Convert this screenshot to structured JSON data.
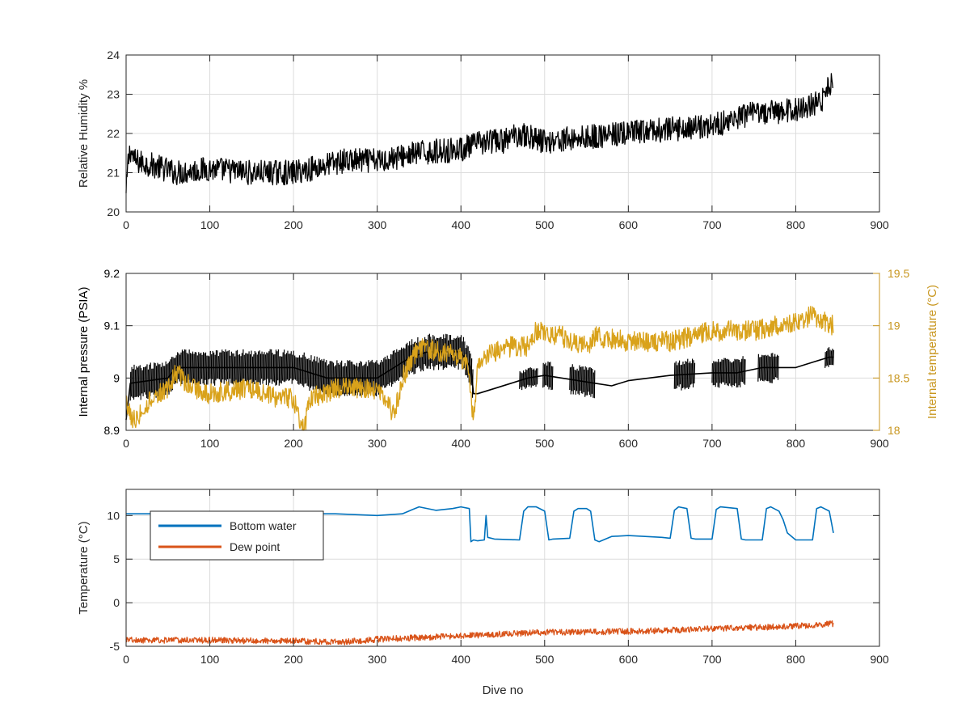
{
  "figure": {
    "xlabel": "Dive no"
  },
  "colors": {
    "axis": "#262626",
    "grid": "#dcdcdc",
    "black_series": "#000000",
    "gold": "#D9A21B",
    "gold_text": "#C8961E",
    "blue": "#0072BD",
    "orange": "#D95319"
  },
  "chart_data": [
    {
      "type": "line",
      "ylabel": "Relative Humidity %",
      "xlim": [
        0,
        900
      ],
      "ylim": [
        20,
        24
      ],
      "xticks": [
        "0",
        "100",
        "200",
        "300",
        "400",
        "500",
        "600",
        "700",
        "800",
        "900"
      ],
      "yticks": [
        "20",
        "21",
        "22",
        "23",
        "24"
      ],
      "grid": true,
      "series": [
        {
          "color": "black",
          "noise": 0.32,
          "x": [
            0,
            2,
            5,
            10,
            30,
            60,
            100,
            150,
            200,
            240,
            260,
            300,
            350,
            400,
            430,
            450,
            470,
            500,
            550,
            600,
            650,
            700,
            750,
            800,
            830,
            845
          ],
          "y": [
            20.4,
            21.2,
            21.6,
            21.3,
            21.2,
            21.0,
            21.1,
            21.0,
            21.0,
            21.2,
            21.3,
            21.3,
            21.5,
            21.6,
            21.8,
            21.8,
            22.0,
            21.8,
            21.9,
            22.0,
            22.1,
            22.2,
            22.5,
            22.6,
            22.8,
            23.4
          ]
        }
      ]
    },
    {
      "type": "line",
      "ylabel": "Internal pressure (PSIA)",
      "ylabel_right": "Internal temperature (°C)",
      "xlim": [
        0,
        900
      ],
      "ylim": [
        8.9,
        9.2
      ],
      "ylim_right": [
        18,
        19.5
      ],
      "xticks": [
        "0",
        "100",
        "200",
        "300",
        "400",
        "500",
        "600",
        "700",
        "800",
        "900"
      ],
      "yticks": [
        "8.9",
        "9",
        "9.1",
        "9.2"
      ],
      "yticks_right": [
        "18",
        "18.5",
        "19",
        "19.5"
      ],
      "grid": true,
      "series": [
        {
          "color": "black",
          "axis": "left",
          "x": [
            0,
            5,
            50,
            60,
            100,
            200,
            240,
            300,
            320,
            340,
            360,
            400,
            412,
            415,
            420,
            440,
            460,
            480,
            500,
            520,
            540,
            560,
            580,
            600,
            650,
            700,
            730,
            760,
            780,
            800,
            820,
            840,
            845
          ],
          "y": [
            8.92,
            8.99,
            9.0,
            9.02,
            9.02,
            9.02,
            9.0,
            9.0,
            9.02,
            9.04,
            9.05,
            9.05,
            9.02,
            8.97,
            8.97,
            8.98,
            8.99,
            9.0,
            9.005,
            9.0,
            8.995,
            8.99,
            8.985,
            8.995,
            9.005,
            9.01,
            9.01,
            9.02,
            9.02,
            9.02,
            9.03,
            9.04,
            9.04
          ]
        },
        {
          "color": "gold",
          "axis": "right",
          "noise": 0.1,
          "x": [
            0,
            5,
            10,
            30,
            50,
            60,
            80,
            100,
            150,
            180,
            200,
            212,
            220,
            250,
            300,
            320,
            330,
            350,
            400,
            410,
            412,
            415,
            420,
            430,
            440,
            460,
            480,
            490,
            520,
            550,
            560,
            600,
            650,
            700,
            750,
            780,
            800,
            820,
            845
          ],
          "y": [
            18.3,
            18.15,
            18.1,
            18.3,
            18.4,
            18.55,
            18.4,
            18.35,
            18.4,
            18.3,
            18.3,
            18.0,
            18.3,
            18.4,
            18.4,
            18.15,
            18.5,
            18.8,
            18.7,
            18.6,
            18.3,
            18.1,
            18.6,
            18.7,
            18.75,
            18.8,
            18.8,
            18.95,
            18.9,
            18.8,
            18.9,
            18.85,
            18.85,
            18.95,
            18.95,
            19.0,
            19.05,
            19.1,
            19.0
          ]
        }
      ]
    },
    {
      "type": "line",
      "ylabel": "Temperature (°C)",
      "xlabel": "Dive no",
      "xlim": [
        0,
        900
      ],
      "ylim": [
        -5,
        13
      ],
      "xticks": [
        "0",
        "100",
        "200",
        "300",
        "400",
        "500",
        "600",
        "700",
        "800",
        "900"
      ],
      "yticks": [
        "-5",
        "0",
        "5",
        "10"
      ],
      "grid": true,
      "legend": "top-left",
      "series": [
        {
          "name": "Bottom water",
          "color": "blue",
          "x": [
            0,
            40,
            60,
            110,
            120,
            250,
            300,
            330,
            350,
            370,
            390,
            400,
            410,
            412,
            415,
            420,
            428,
            430,
            432,
            440,
            470,
            475,
            480,
            490,
            500,
            505,
            510,
            530,
            535,
            540,
            550,
            555,
            560,
            565,
            580,
            600,
            640,
            650,
            655,
            660,
            670,
            675,
            680,
            700,
            705,
            710,
            730,
            735,
            740,
            760,
            765,
            770,
            780,
            785,
            790,
            800,
            820,
            825,
            830,
            840,
            843,
            845
          ],
          "y": [
            10.2,
            10.2,
            10.4,
            10.4,
            10.2,
            10.2,
            10.0,
            10.2,
            11.0,
            10.6,
            10.8,
            11.0,
            10.8,
            7.0,
            7.2,
            7.1,
            7.2,
            10.0,
            7.5,
            7.3,
            7.2,
            10.5,
            11.0,
            11.0,
            10.5,
            7.2,
            7.3,
            7.4,
            10.5,
            10.8,
            10.8,
            10.5,
            7.2,
            7.0,
            7.6,
            7.7,
            7.5,
            7.4,
            10.6,
            11.0,
            10.8,
            7.4,
            7.3,
            7.3,
            10.7,
            11.0,
            10.8,
            7.3,
            7.2,
            7.2,
            10.8,
            11.0,
            10.5,
            9.5,
            8.0,
            7.2,
            7.2,
            10.8,
            11.0,
            10.5,
            9.0,
            8.0
          ]
        },
        {
          "name": "Dew point",
          "color": "orange",
          "noise": 0.35,
          "x": [
            0,
            100,
            200,
            260,
            300,
            400,
            500,
            600,
            700,
            800,
            845
          ],
          "y": [
            -4.3,
            -4.3,
            -4.4,
            -4.5,
            -4.2,
            -3.8,
            -3.4,
            -3.3,
            -3.0,
            -2.7,
            -2.4
          ]
        }
      ]
    }
  ]
}
